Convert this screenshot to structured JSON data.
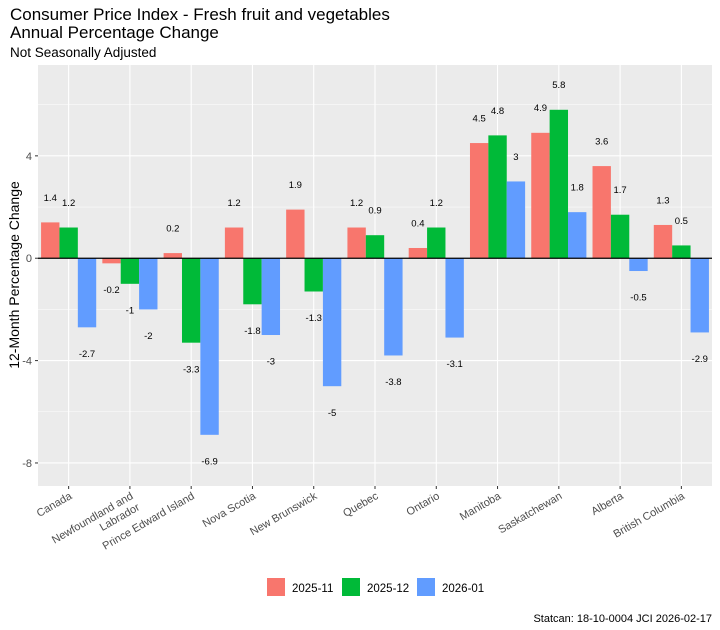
{
  "chart_data": {
    "type": "bar",
    "title": "Consumer Price Index - Fresh fruit and vegetables",
    "title2": "Annual Percentage Change",
    "subtitle": "Not Seasonally Adjusted",
    "xlabel": "",
    "ylabel": "12-Month Percentage Change",
    "ylim": [
      -8.9,
      7.55
    ],
    "yticks": [
      -8,
      -4,
      0,
      4
    ],
    "caption": "Statcan: 18-10-0004 JCI 2026-02-17",
    "legend_position": "bottom",
    "categories": [
      "Canada",
      "Newfoundland and\nLabrador",
      "Prince Edward Island",
      "Nova Scotia",
      "New Brunswick",
      "Quebec",
      "Ontario",
      "Manitoba",
      "Saskatchewan",
      "Alberta",
      "British Columbia"
    ],
    "series": [
      {
        "name": "2025-11",
        "color": "#F8766D",
        "values": [
          1.4,
          -0.2,
          0.2,
          1.2,
          1.9,
          1.2,
          0.4,
          4.5,
          4.9,
          3.6,
          1.3
        ]
      },
      {
        "name": "2025-12",
        "color": "#00BA38",
        "values": [
          1.2,
          -1,
          -3.3,
          -1.8,
          -1.3,
          0.9,
          1.2,
          4.8,
          5.8,
          1.7,
          0.5
        ]
      },
      {
        "name": "2026-01",
        "color": "#619CFF",
        "values": [
          -2.7,
          -2,
          -6.9,
          -3,
          -5,
          -3.8,
          -3.1,
          3,
          1.8,
          -0.5,
          -2.9
        ]
      }
    ]
  }
}
